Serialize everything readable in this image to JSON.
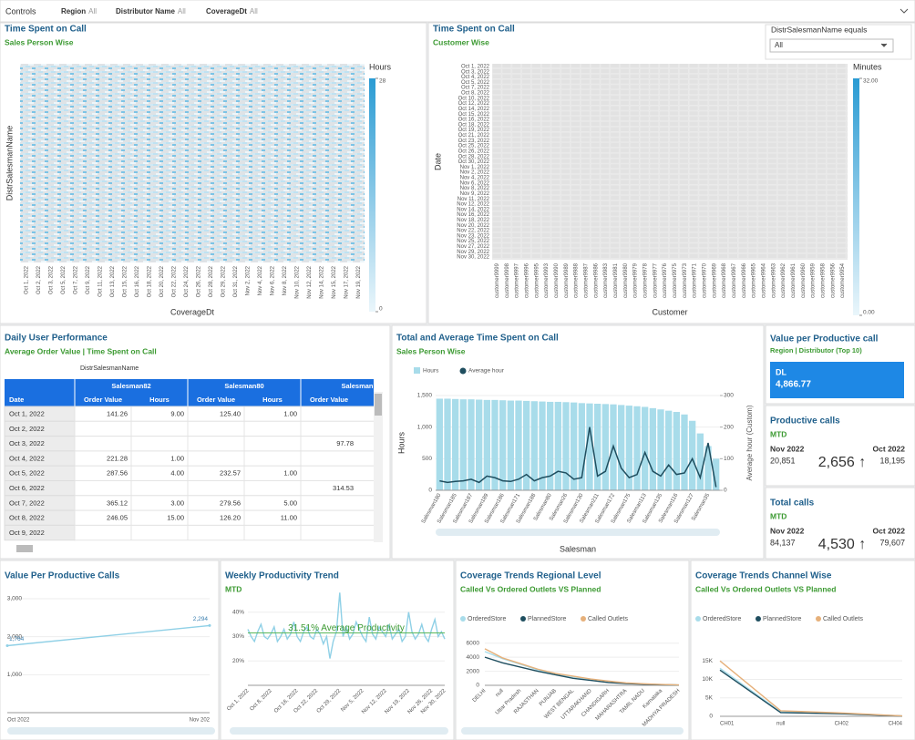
{
  "controls": {
    "label": "Controls",
    "filters": [
      {
        "name": "Region",
        "value": "All"
      },
      {
        "name": "Distributor Name",
        "value": "All"
      },
      {
        "name": "CoverageDt",
        "value": "All"
      }
    ]
  },
  "daily_performance": {
    "title": "Daily User Performance",
    "subtitle": "Average Order Value | Time Spent on Call",
    "group_label": "DistrSalesmanName",
    "groups": [
      "Salesman82",
      "Salesman80",
      "Salesman"
    ],
    "row_header": "Date",
    "columns": [
      "Order Value",
      "Hours",
      "Order Value",
      "Hours",
      "Order Value"
    ],
    "rows": [
      [
        "Oct 1, 2022",
        "141.26",
        "9.00",
        "125.40",
        "1.00",
        null
      ],
      [
        "Oct 2, 2022",
        null,
        null,
        null,
        null,
        null
      ],
      [
        "Oct 3, 2022",
        null,
        null,
        null,
        null,
        "97.78"
      ],
      [
        "Oct 4, 2022",
        "221.28",
        "1.00",
        null,
        null,
        null
      ],
      [
        "Oct 5, 2022",
        "287.56",
        "4.00",
        "232.57",
        "1.00",
        null
      ],
      [
        "Oct 6, 2022",
        null,
        null,
        null,
        null,
        "314.53"
      ],
      [
        "Oct 7, 2022",
        "365.12",
        "3.00",
        "279.56",
        "5.00",
        null
      ],
      [
        "Oct 8, 2022",
        "246.05",
        "15.00",
        "126.20",
        "11.00",
        null
      ],
      [
        "Oct 9, 2022",
        null,
        null,
        null,
        null,
        null
      ]
    ]
  },
  "kpis": {
    "value_per_call": {
      "title": "Value per Productive call",
      "subtitle": "Region | Distributor (Top 10)",
      "label": "DL",
      "value": "4,866.77"
    },
    "productive_calls": {
      "title": "Productive calls",
      "subtitle": "MTD",
      "current_period": "Nov 2022",
      "current": "20,851",
      "change": "2,656 ↑",
      "previous_period": "Oct 2022",
      "previous": "18,195"
    },
    "total_calls": {
      "title": "Total calls",
      "subtitle": "MTD",
      "current_period": "Nov 2022",
      "current": "84,137",
      "change": "4,530 ↑",
      "previous_period": "Oct 2022",
      "previous": "79,607"
    }
  },
  "chart_data": [
    {
      "type": "heatmap",
      "title": "Time Spent on Call",
      "subtitle": "Sales Person Wise",
      "x_label": "CoverageDt",
      "y_label": "DistrSalesmanName",
      "legend_title": "Hours",
      "colorlim": [
        0,
        28
      ],
      "colorbar_ticks": [
        0,
        28
      ],
      "categories": [
        "Oct 1, 2022",
        "Oct 2, 2022",
        "Oct 3, 2022",
        "Oct 5, 2022",
        "Oct 7, 2022",
        "Oct 9, 2022",
        "Oct 11, 2022",
        "Oct 13, 2022",
        "Oct 15, 2022",
        "Oct 16, 2022",
        "Oct 18, 2022",
        "Oct 20, 2022",
        "Oct 22, 2022",
        "Oct 24, 2022",
        "Oct 26, 2022",
        "Oct 28, 2022",
        "Oct 29, 2022",
        "Oct 31, 2022",
        "Nov 2, 2022",
        "Nov 4, 2022",
        "Nov 6, 2022",
        "Nov 8, 2022",
        "Nov 10, 2022",
        "Nov 12, 2022",
        "Nov 14, 2022",
        "Nov 15, 2022",
        "Nov 17, 2022",
        "Nov 19, 2022"
      ]
    },
    {
      "type": "heatmap",
      "title": "Time Spent on Call",
      "subtitle": "Customer Wise",
      "filter_label": "DistrSalesmanName equals",
      "filter_value": "All",
      "x_label": "Customer",
      "y_label": "Date",
      "legend_title": "Minutes",
      "colorlim": [
        0,
        32
      ],
      "colorbar_ticks": [
        {
          "value": 0,
          "label": "0.00"
        },
        {
          "value": 32,
          "label": "32.00"
        }
      ],
      "categories": [
        "customer9999",
        "customer9998",
        "customer9997",
        "customer9996",
        "customer9995",
        "customer9993",
        "customer9990",
        "customer9989",
        "customer9988",
        "customer9987",
        "customer9986",
        "customer9983",
        "customer9981",
        "customer9980",
        "customer9979",
        "customer9978",
        "customer9977",
        "customer9976",
        "customer9975",
        "customer9973",
        "customer9971",
        "customer9970",
        "customer9969",
        "customer9968",
        "customer9967",
        "customer9966",
        "customer9965",
        "customer9964",
        "customer9963",
        "customer9962",
        "customer9961",
        "customer9960",
        "customer9959",
        "customer9958",
        "customer9956",
        "customer9954"
      ],
      "y_categories": [
        "Oct 1, 2022",
        "Oct 3, 2022",
        "Oct 4, 2022",
        "Oct 5, 2022",
        "Oct 7, 2022",
        "Oct 8, 2022",
        "Oct 10, 2022",
        "Oct 12, 2022",
        "Oct 14, 2022",
        "Oct 15, 2022",
        "Oct 16, 2022",
        "Oct 18, 2022",
        "Oct 19, 2022",
        "Oct 21, 2022",
        "Oct 23, 2022",
        "Oct 25, 2022",
        "Oct 26, 2022",
        "Oct 28, 2022",
        "Oct 30, 2022",
        "Nov 1, 2022",
        "Nov 2, 2022",
        "Nov 4, 2022",
        "Nov 6, 2022",
        "Nov 8, 2022",
        "Nov 9, 2022",
        "Nov 11, 2022",
        "Nov 12, 2022",
        "Nov 14, 2022",
        "Nov 16, 2022",
        "Nov 18, 2022",
        "Nov 20, 2022",
        "Nov 22, 2022",
        "Nov 23, 2022",
        "Nov 25, 2022",
        "Nov 27, 2022",
        "Nov 29, 2022",
        "Nov 30, 2022"
      ]
    },
    {
      "type": "bar_line",
      "title": "Total and Average Time Spent on  Call",
      "subtitle": "Sales Person Wise",
      "x_label": "Salesman",
      "y_label": "Hours",
      "y2_label": "Average hour (Custom)",
      "categories": [
        "Salesman180",
        null,
        "Salesman185",
        null,
        "Salesman187",
        null,
        "Salesman189",
        null,
        "Salesman186",
        null,
        "Salesman171",
        null,
        "Salesman188",
        null,
        "Salesman80",
        null,
        "Salesman26",
        null,
        "Salesman130",
        null,
        "Salesman211",
        null,
        "Salesman172",
        null,
        "Salesman175",
        null,
        "Salesman113",
        null,
        "Salesman135",
        null,
        "Salesman116",
        null,
        "Salesman127",
        null,
        "Salesman35",
        null
      ],
      "ylim": [
        0,
        1500
      ],
      "yticks": [
        0,
        500,
        {
          "value": 1000,
          "label": "1,000"
        },
        {
          "value": 1500,
          "label": "1,500"
        }
      ],
      "y2lim": [
        0,
        300
      ],
      "y2ticks": [
        0,
        100,
        200,
        300
      ],
      "series": [
        {
          "name": "Hours",
          "color": "#a8dcea",
          "values": [
            1450,
            1450,
            1445,
            1440,
            1440,
            1435,
            1430,
            1430,
            1425,
            1420,
            1420,
            1415,
            1410,
            1405,
            1400,
            1400,
            1395,
            1390,
            1380,
            1375,
            1370,
            1365,
            1360,
            1350,
            1340,
            1330,
            1320,
            1300,
            1280,
            1260,
            1240,
            1200,
            1100,
            900,
            700,
            500
          ]
        },
        {
          "name": "Average hour",
          "color": "#1f4e5f",
          "axis": "y2",
          "values": [
            30,
            25,
            28,
            30,
            35,
            25,
            45,
            40,
            30,
            28,
            35,
            50,
            30,
            40,
            45,
            60,
            55,
            35,
            40,
            200,
            45,
            60,
            140,
            70,
            40,
            50,
            120,
            60,
            45,
            80,
            50,
            55,
            100,
            40,
            150,
            10
          ]
        }
      ]
    },
    {
      "type": "line",
      "title": "Value Per Productive Calls",
      "categories": [
        "Oct 2022",
        "Nov 202"
      ],
      "color": "#8fd0e6",
      "values": [
        1764,
        2294
      ],
      "value_labels": [
        "1,764",
        "2,294"
      ],
      "ylim": [
        0,
        3000
      ],
      "yticks": [
        {
          "value": 1000,
          "label": "1,000"
        },
        {
          "value": 2000,
          "label": "2,000"
        },
        {
          "value": 3000,
          "label": "3,000"
        }
      ]
    },
    {
      "type": "line",
      "title": "Weekly Productivity Trend",
      "subtitle": "MTD",
      "annotation": "31.51% Average Productivity",
      "average": 31.51,
      "color": "#8fd0e6",
      "categories": [
        "Oct 1, 2022",
        null,
        null,
        null,
        null,
        null,
        null,
        "Oct 8, 2022",
        null,
        null,
        null,
        null,
        null,
        null,
        null,
        "Oct 16, 2022",
        null,
        null,
        null,
        null,
        null,
        "Oct 22, 2022",
        null,
        null,
        null,
        null,
        null,
        null,
        "Oct 29, 2022",
        null,
        null,
        null,
        null,
        null,
        null,
        "Nov 5, 2022",
        null,
        null,
        null,
        null,
        null,
        null,
        "Nov 12, 2022",
        null,
        null,
        null,
        null,
        null,
        null,
        "Nov 19, 2022",
        null,
        null,
        null,
        null,
        null,
        null,
        "Nov 26, 2022",
        null,
        null,
        null,
        "Nov 30, 2022"
      ],
      "values": [
        33,
        30,
        28,
        32,
        35,
        30,
        29,
        31,
        34,
        28,
        30,
        33,
        29,
        31,
        36,
        30,
        28,
        32,
        34,
        30,
        29,
        33,
        31,
        27,
        30,
        21,
        28,
        32,
        48,
        30,
        34,
        29,
        31,
        36,
        33,
        30,
        28,
        38,
        31,
        29,
        34,
        32,
        30,
        35,
        29,
        31,
        33,
        28,
        30,
        40,
        32,
        29,
        31,
        35,
        30,
        28,
        33,
        37,
        30,
        32,
        29
      ],
      "ylim": [
        10,
        50
      ],
      "yticks": [
        {
          "value": 20,
          "label": "20%"
        },
        {
          "value": 30,
          "label": "30%"
        },
        {
          "value": 40,
          "label": "40%"
        }
      ]
    },
    {
      "type": "line",
      "title": "Coverage Trends Regional Level",
      "subtitle": "Called Vs Ordered Outlets VS Planned",
      "categories": [
        "DELHI",
        "null",
        "Uttar Pradesh",
        "RAJASTHAN",
        "PUNJAB",
        "WEST BENGAL",
        "UTTARAKHAND",
        "CHANDIGARH",
        "MAHARASHTRA",
        "TAMIL NADU",
        "Karnataka",
        "MADHYA PRADESH"
      ],
      "ylim": [
        0,
        7000
      ],
      "yticks": [
        0,
        2000,
        4000,
        6000
      ],
      "series": [
        {
          "name": "OrderedStore",
          "color": "#a8dcea",
          "values": [
            4800,
            3800,
            3000,
            2200,
            1600,
            1200,
            800,
            500,
            300,
            200,
            100,
            50
          ]
        },
        {
          "name": "PlannedStore",
          "color": "#1f4e5f",
          "values": [
            4000,
            3200,
            2600,
            2000,
            1500,
            1000,
            700,
            400,
            250,
            150,
            80,
            40
          ]
        },
        {
          "name": "Called Outlets",
          "color": "#e6b07a",
          "values": [
            5200,
            3900,
            3100,
            2300,
            1700,
            1300,
            900,
            600,
            350,
            220,
            120,
            60
          ]
        }
      ]
    },
    {
      "type": "line",
      "title": "Coverage Trends Channel Wise",
      "subtitle": "Called Vs Ordered Outlets VS Planned",
      "categories": [
        "CH01",
        "null",
        "CH02",
        "CH04"
      ],
      "ylim": [
        0,
        18000
      ],
      "yticks": [
        0,
        {
          "value": 5000,
          "label": "5K"
        },
        {
          "value": 10000,
          "label": "10K"
        },
        {
          "value": 15000,
          "label": "15K"
        }
      ],
      "series": [
        {
          "name": "OrderedStore",
          "color": "#a8dcea",
          "values": [
            13000,
            1200,
            800,
            100
          ]
        },
        {
          "name": "PlannedStore",
          "color": "#1f4e5f",
          "values": [
            12500,
            1000,
            700,
            80
          ]
        },
        {
          "name": "Called Outlets",
          "color": "#e6b07a",
          "values": [
            15000,
            1500,
            900,
            120
          ]
        }
      ]
    }
  ]
}
